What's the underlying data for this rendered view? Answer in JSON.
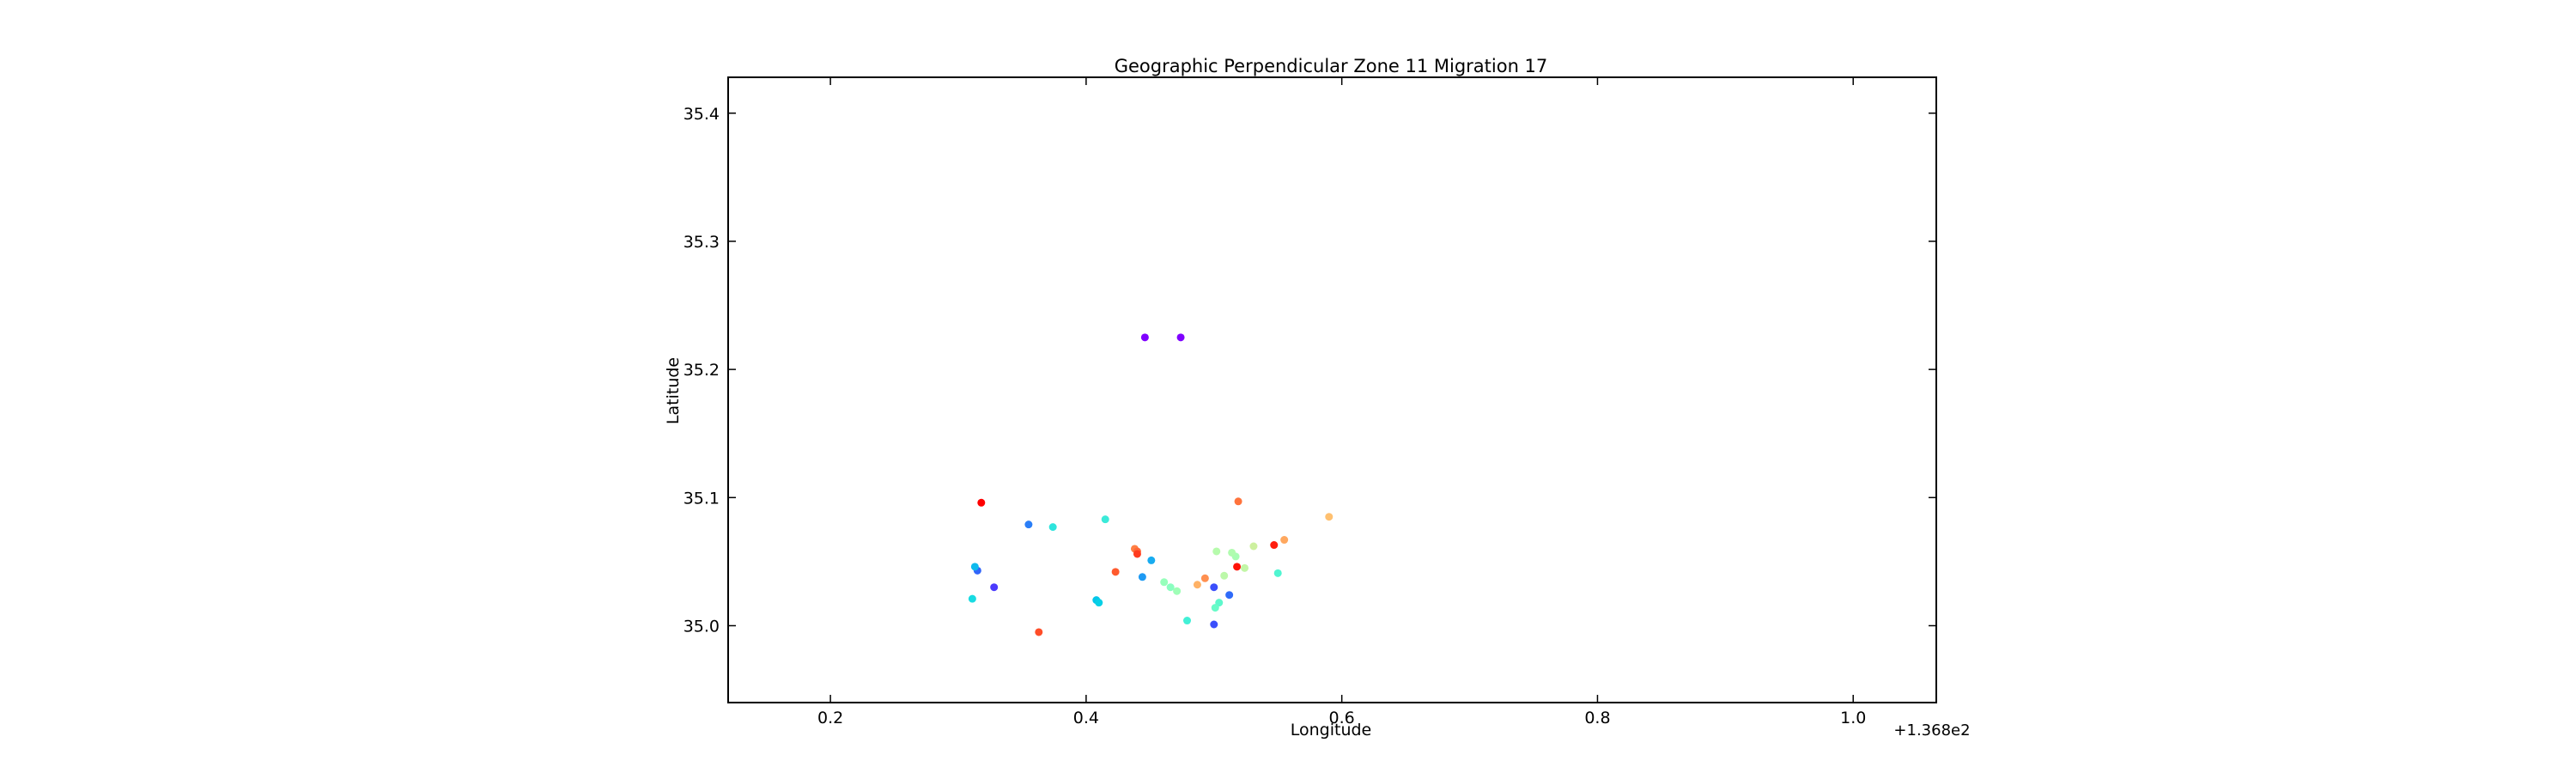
{
  "chart_data": {
    "type": "scatter",
    "title": "Geographic Perpendicular Zone 11 Migration 17",
    "xlabel": "Longitude",
    "ylabel": "Latitude",
    "x_offset_label": "+1.368e2",
    "xlim": [
      0.12,
      1.065
    ],
    "ylim": [
      34.94,
      35.428
    ],
    "xticks": [
      0.2,
      0.4,
      0.6,
      0.8,
      1.0
    ],
    "xtick_labels": [
      "0.2",
      "0.4",
      "0.6",
      "0.8",
      "1.0"
    ],
    "yticks": [
      35.0,
      35.1,
      35.2,
      35.3,
      35.4
    ],
    "ytick_labels": [
      "35.0",
      "35.1",
      "35.2",
      "35.3",
      "35.4"
    ],
    "grid": false,
    "legend": "none",
    "colormap": "rainbow",
    "points": [
      {
        "x": 0.446,
        "y": 35.225,
        "color": "#7f00ff"
      },
      {
        "x": 0.474,
        "y": 35.225,
        "color": "#7f00ff"
      },
      {
        "x": 0.328,
        "y": 35.03,
        "color": "#4b3afd"
      },
      {
        "x": 0.5,
        "y": 35.001,
        "color": "#3b4ffb"
      },
      {
        "x": 0.5,
        "y": 35.03,
        "color": "#3b4ffb"
      },
      {
        "x": 0.315,
        "y": 35.043,
        "color": "#3165fa"
      },
      {
        "x": 0.512,
        "y": 35.024,
        "color": "#2f6bf9"
      },
      {
        "x": 0.355,
        "y": 35.079,
        "color": "#2a7ef7"
      },
      {
        "x": 0.444,
        "y": 35.038,
        "color": "#1e9af3"
      },
      {
        "x": 0.451,
        "y": 35.051,
        "color": "#18acf0"
      },
      {
        "x": 0.313,
        "y": 35.046,
        "color": "#0fbaed"
      },
      {
        "x": 0.408,
        "y": 35.02,
        "color": "#03c6ea"
      },
      {
        "x": 0.41,
        "y": 35.018,
        "color": "#07d0e6"
      },
      {
        "x": 0.311,
        "y": 35.021,
        "color": "#18dbe2"
      },
      {
        "x": 0.374,
        "y": 35.077,
        "color": "#2ee4dd"
      },
      {
        "x": 0.415,
        "y": 35.083,
        "color": "#3bead9"
      },
      {
        "x": 0.479,
        "y": 35.004,
        "color": "#42f0d6"
      },
      {
        "x": 0.55,
        "y": 35.041,
        "color": "#50f5d1"
      },
      {
        "x": 0.504,
        "y": 35.018,
        "color": "#5ef8cc"
      },
      {
        "x": 0.501,
        "y": 35.014,
        "color": "#68fbc8"
      },
      {
        "x": 0.466,
        "y": 35.03,
        "color": "#8afec0"
      },
      {
        "x": 0.461,
        "y": 35.034,
        "color": "#96ffbb"
      },
      {
        "x": 0.471,
        "y": 35.027,
        "color": "#9ffeb7"
      },
      {
        "x": 0.517,
        "y": 35.054,
        "color": "#a8fdb3"
      },
      {
        "x": 0.514,
        "y": 35.057,
        "color": "#b0fcaf"
      },
      {
        "x": 0.502,
        "y": 35.058,
        "color": "#b6fbac"
      },
      {
        "x": 0.508,
        "y": 35.039,
        "color": "#bcf8a9"
      },
      {
        "x": 0.524,
        "y": 35.045,
        "color": "#c2f6a6"
      },
      {
        "x": 0.531,
        "y": 35.062,
        "color": "#cdf09f"
      },
      {
        "x": 0.59,
        "y": 35.085,
        "color": "#ffc070"
      },
      {
        "x": 0.487,
        "y": 35.032,
        "color": "#ffb266"
      },
      {
        "x": 0.555,
        "y": 35.067,
        "color": "#ffa85f"
      },
      {
        "x": 0.493,
        "y": 35.037,
        "color": "#ff9050"
      },
      {
        "x": 0.438,
        "y": 35.06,
        "color": "#ff7f44"
      },
      {
        "x": 0.519,
        "y": 35.097,
        "color": "#ff733c"
      },
      {
        "x": 0.44,
        "y": 35.058,
        "color": "#ff6838"
      },
      {
        "x": 0.423,
        "y": 35.042,
        "color": "#ff5a2e"
      },
      {
        "x": 0.363,
        "y": 34.995,
        "color": "#ff4d28"
      },
      {
        "x": 0.44,
        "y": 35.056,
        "color": "#ff3b1e"
      },
      {
        "x": 0.547,
        "y": 35.063,
        "color": "#ff1e0f"
      },
      {
        "x": 0.518,
        "y": 35.046,
        "color": "#ff1208"
      },
      {
        "x": 0.318,
        "y": 35.096,
        "color": "#ff0000"
      }
    ]
  }
}
